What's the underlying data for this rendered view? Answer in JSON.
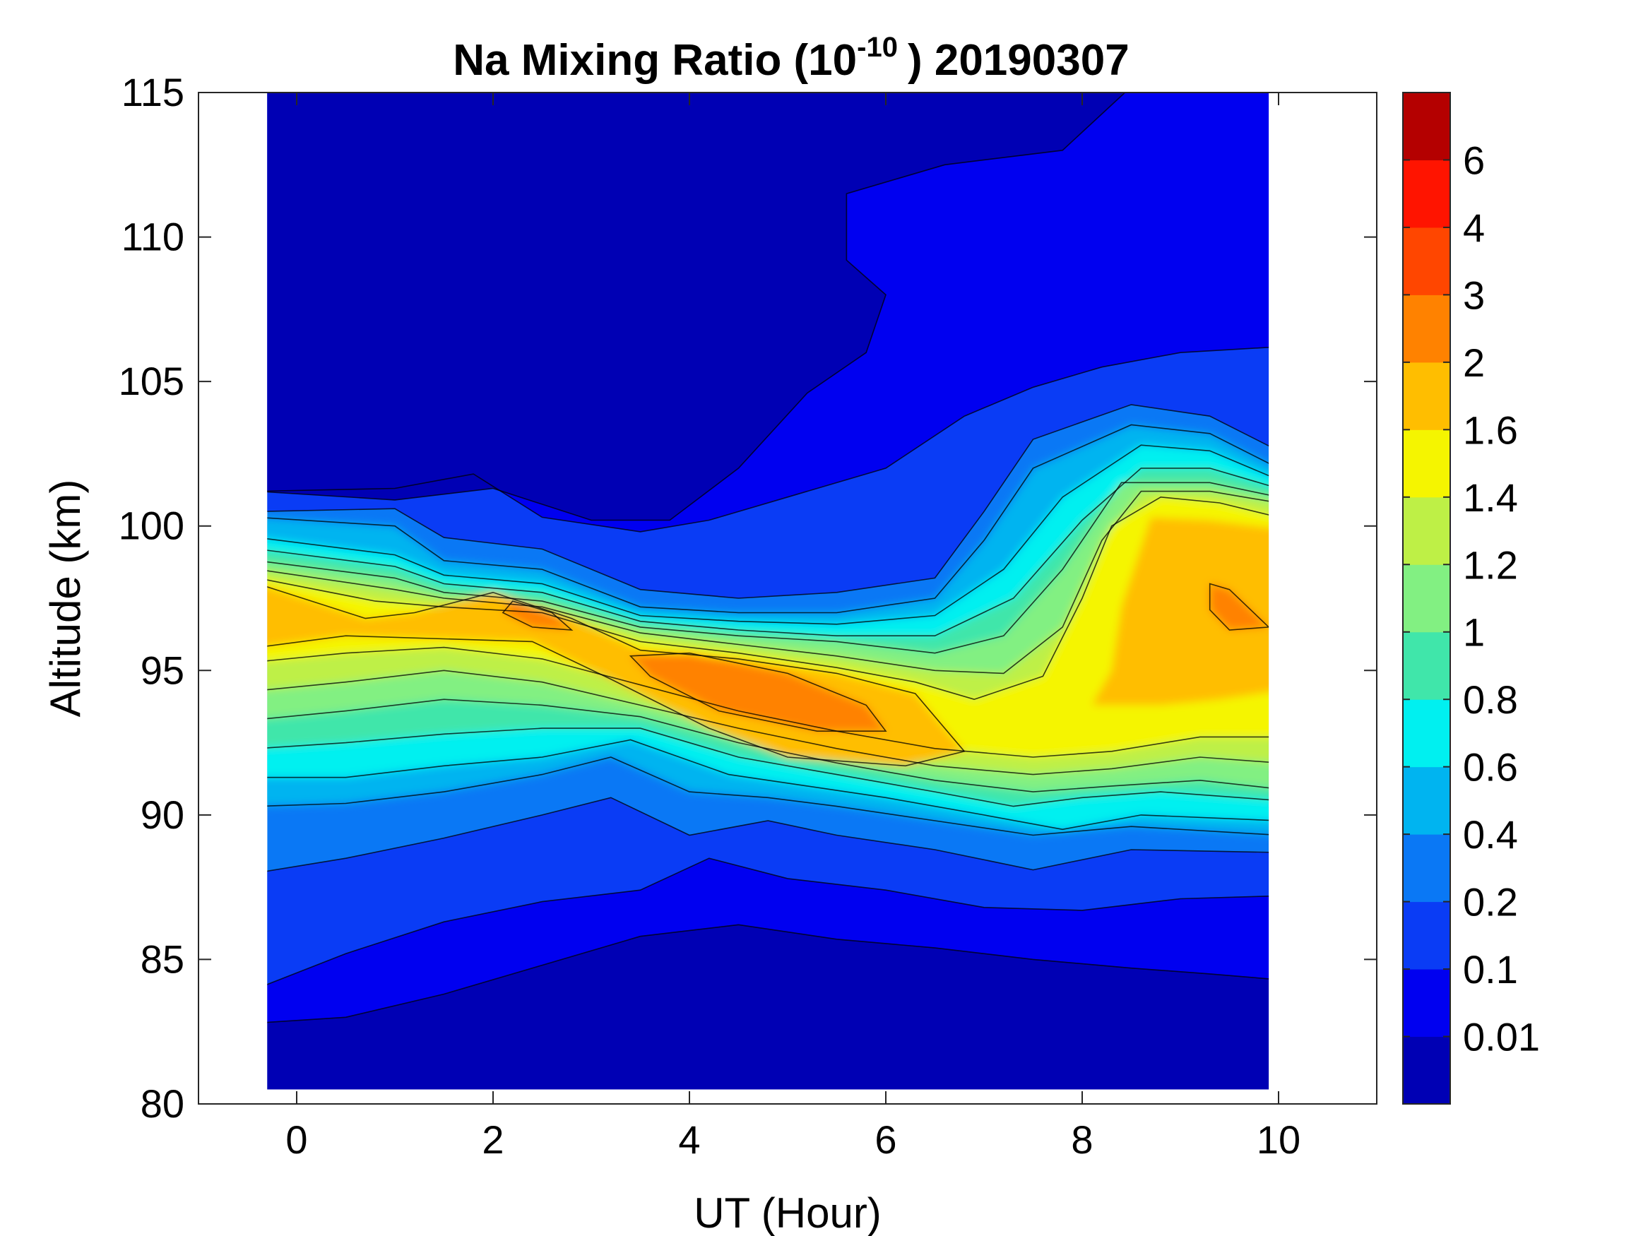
{
  "chart_data": {
    "type": "contour",
    "title_prefix": "Na Mixing Ratio (10",
    "title_exponent": "-10",
    "title_suffix": ") 20190307",
    "xlabel": "UT (Hour)",
    "ylabel": "Altitude (km)",
    "xlim": [
      -1,
      11
    ],
    "ylim": [
      80,
      115
    ],
    "xticks": [
      "0",
      "2",
      "4",
      "6",
      "8",
      "10"
    ],
    "xtick_values": [
      0,
      2,
      4,
      6,
      8,
      10
    ],
    "yticks": [
      "80",
      "85",
      "90",
      "95",
      "100",
      "105",
      "110",
      "115"
    ],
    "ytick_values": [
      80,
      85,
      90,
      95,
      100,
      105,
      110,
      115
    ],
    "data_extent": {
      "x": [
        -0.3,
        9.9
      ],
      "y": [
        80.5,
        115
      ]
    },
    "colorbar": {
      "labels": [
        "0.01",
        "0.1",
        "0.2",
        "0.4",
        "0.6",
        "0.8",
        "1",
        "1.2",
        "1.4",
        "1.6",
        "2",
        "3",
        "4",
        "6"
      ],
      "colors": [
        "#0000b4",
        "#0000f0",
        "#0a3cf5",
        "#0a78f5",
        "#00b4f0",
        "#00f0f0",
        "#40e6aa",
        "#82f082",
        "#bef046",
        "#f5f500",
        "#ffbe00",
        "#ff8200",
        "#ff4600",
        "#ff1400",
        "#b40000"
      ]
    },
    "features": [
      {
        "name": "main-layer-peak-center",
        "x": 4.9,
        "y": 93.6,
        "value": "2-3"
      },
      {
        "name": "upper-left-peak",
        "x": 2.4,
        "y": 96.9,
        "value": "2-3"
      },
      {
        "name": "right-peak",
        "x": 9.6,
        "y": 97.1,
        "value": "2-3"
      },
      {
        "name": "right-broad-layer",
        "x": 9.0,
        "y": 97.0,
        "value": "1.6-2"
      },
      {
        "name": "upper-dark-region",
        "x": 2.5,
        "y": 108.0,
        "value": "<0.01"
      }
    ]
  }
}
